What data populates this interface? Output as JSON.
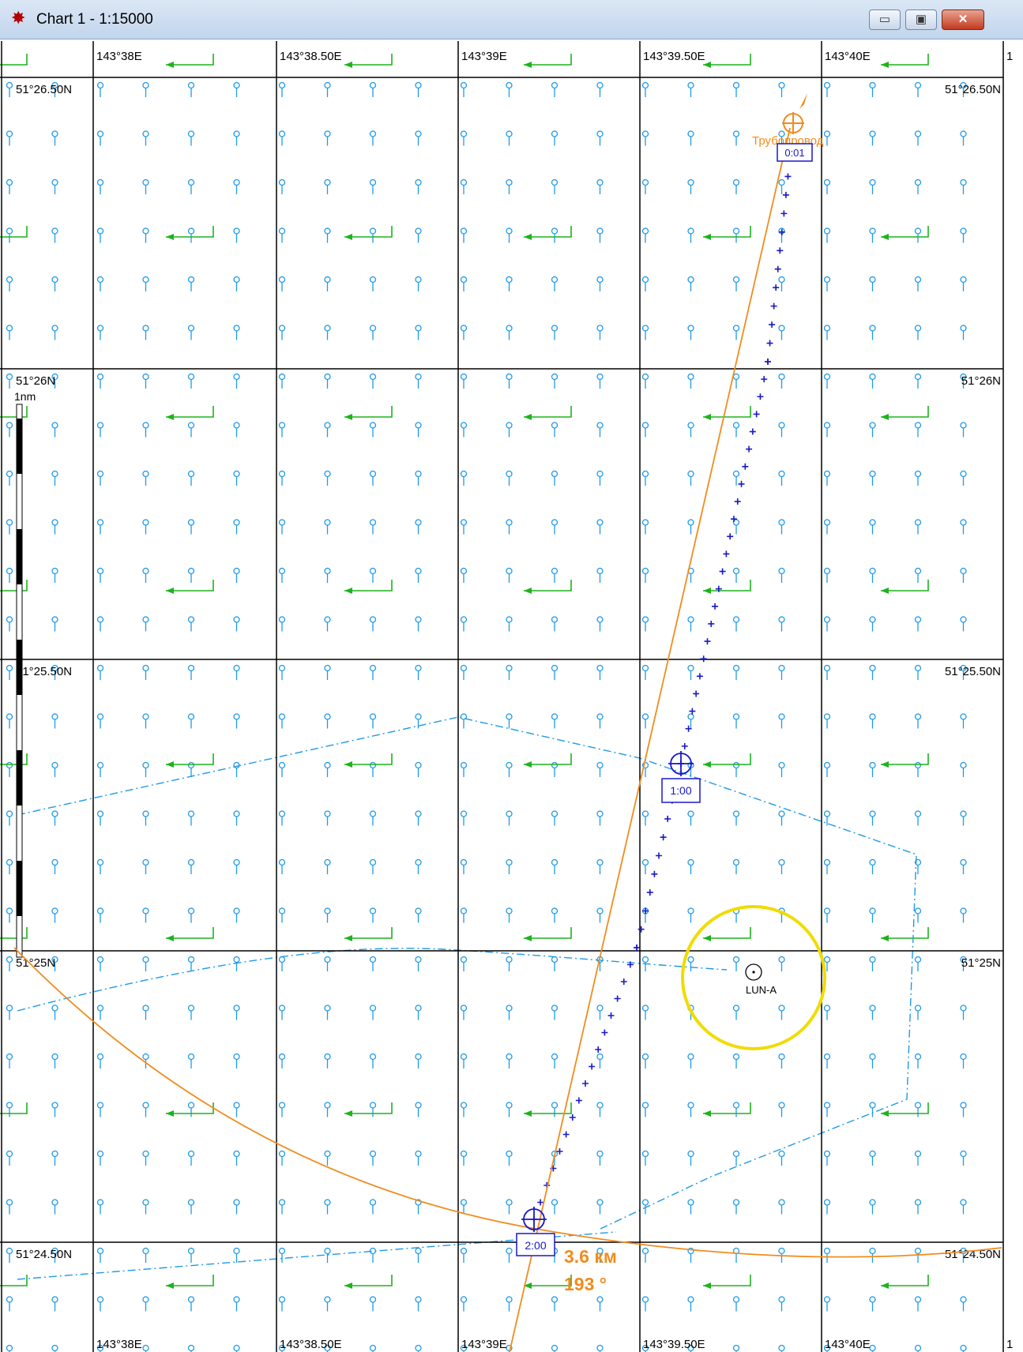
{
  "window": {
    "title": "Chart 1 - 1:15000",
    "app_icon": "chart-plotter-icon",
    "minimize_glyph": "▭",
    "maximize_glyph": "▣",
    "close_glyph": "✕"
  },
  "chart": {
    "top_longitudes": [
      "143°38E",
      "143°38.50E",
      "143°39E",
      "143°39.50E",
      "143°40E"
    ],
    "bottom_longitudes": [
      "143°38E",
      "143°38.50E",
      "143°39E",
      "143°39.50E",
      "143°40E"
    ],
    "edge_label_left": "",
    "edge_label_right": "1",
    "latitudes": [
      "51°26.50N",
      "51°26N",
      "51°25.50N",
      "51°25N",
      "51°24.50N"
    ],
    "scale_bar_label": "1nm",
    "pipeline_label": "Трубопровод",
    "waypoints": [
      "0:01",
      "1:00",
      "2:00"
    ],
    "station_label": "LUN-A",
    "range_readout": "3.6 км",
    "bearing_readout": "193 °",
    "colors": {
      "grid": "#000000",
      "current_marker": "#1e9ae8",
      "current_arrow": "#1db31d",
      "track": "#1818c8",
      "pipeline": "#f08c1e",
      "zone_boundary": "#1e9ae8",
      "station_circle": "#f0dc00"
    }
  }
}
